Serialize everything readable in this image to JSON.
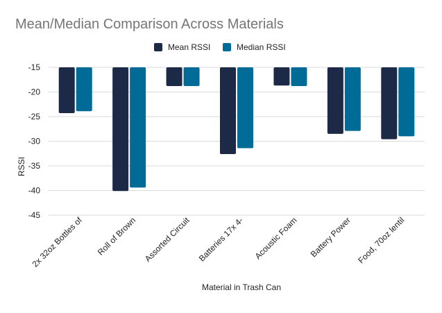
{
  "chart_data": {
    "type": "bar",
    "title": "Mean/Median Comparison Across Materials",
    "xlabel": "Material in Trash Can",
    "ylabel": "RSSI",
    "categories": [
      "2x 32oz Bottles of",
      "Roll of Brown",
      "Assorted Circuit",
      "Batteries 17x 4-",
      "Acoustic Foam",
      "Battery Power",
      "Food, 70oz lentil"
    ],
    "series": [
      {
        "name": "Mean RSSI",
        "color": "#1c2a48",
        "values": [
          -24.3,
          -40.1,
          -18.8,
          -32.6,
          -18.7,
          -28.5,
          -29.6
        ]
      },
      {
        "name": "Median RSSI",
        "color": "#006b96",
        "values": [
          -23.9,
          -39.4,
          -18.8,
          -31.4,
          -18.8,
          -27.9,
          -29.0
        ]
      }
    ],
    "ylim": [
      -45,
      -15
    ],
    "yticks": [
      -15,
      -20,
      -25,
      -30,
      -35,
      -40,
      -45
    ],
    "grid": true,
    "legend": "top-center"
  }
}
